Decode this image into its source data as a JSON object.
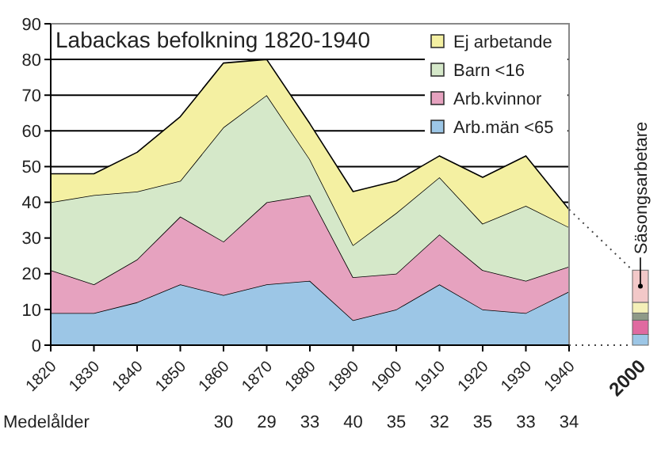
{
  "chart_data": {
    "type": "area",
    "title": "Labackas befolkning 1820-1940",
    "stacked": true,
    "grid": "y",
    "legend": "top right",
    "categories": [
      "1820",
      "1830",
      "1840",
      "1850",
      "1860",
      "1870",
      "1880",
      "1890",
      "1900",
      "1910",
      "1920",
      "1930",
      "1940",
      "2000"
    ],
    "ylim": [
      0,
      90
    ],
    "yticks": [
      0,
      10,
      20,
      30,
      40,
      50,
      60,
      70,
      80,
      90
    ],
    "series": [
      {
        "name": "Arb.män <65",
        "color": "#9cc6e6",
        "values": [
          9,
          9,
          12,
          17,
          14,
          17,
          18,
          7,
          10,
          17,
          10,
          9,
          15,
          null
        ]
      },
      {
        "name": "Arb.kvinnor",
        "color": "#e6a2bf",
        "values": [
          12,
          8,
          12,
          19,
          15,
          23,
          24,
          12,
          10,
          14,
          11,
          9,
          7,
          null
        ]
      },
      {
        "name": "Barn <16",
        "color": "#d5e8c9",
        "values": [
          19,
          25,
          19,
          10,
          32,
          30,
          10,
          9,
          17,
          16,
          13,
          21,
          11,
          null
        ]
      },
      {
        "name": "Ej arbetande",
        "color": "#f4f0a2",
        "values": [
          8,
          6,
          11,
          18,
          18,
          10,
          10,
          15,
          9,
          6,
          13,
          14,
          5,
          null
        ]
      },
      {
        "type": "bar",
        "color": "#9cc6e6",
        "values": [
          null,
          null,
          null,
          null,
          null,
          null,
          null,
          null,
          null,
          null,
          null,
          null,
          null,
          3
        ]
      },
      {
        "type": "bar",
        "color": "#e06aa0",
        "values": [
          null,
          null,
          null,
          null,
          null,
          null,
          null,
          null,
          null,
          null,
          null,
          null,
          null,
          4
        ]
      },
      {
        "type": "bar",
        "color": "#8f9a88",
        "values": [
          null,
          null,
          null,
          null,
          null,
          null,
          null,
          null,
          null,
          null,
          null,
          null,
          null,
          2
        ]
      },
      {
        "type": "bar",
        "color": "#f4f0b8",
        "values": [
          null,
          null,
          null,
          null,
          null,
          null,
          null,
          null,
          null,
          null,
          null,
          null,
          null,
          3
        ]
      },
      {
        "type": "bar",
        "name": "Säsongsarbetare",
        "color": "#f2c8c8",
        "values": [
          null,
          null,
          null,
          null,
          null,
          null,
          null,
          null,
          null,
          null,
          null,
          null,
          null,
          9
        ]
      }
    ],
    "annotations": [
      "Medelålder",
      "30",
      "29",
      "33",
      "40",
      "35",
      "32",
      "35",
      "33",
      "34"
    ]
  }
}
